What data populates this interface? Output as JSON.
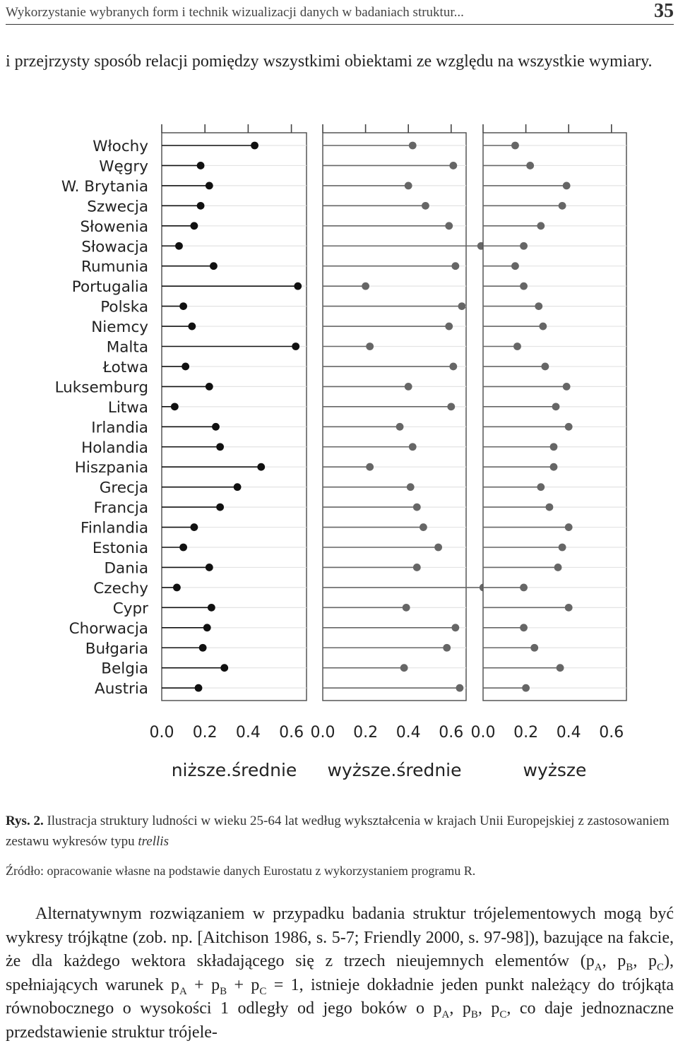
{
  "header": {
    "title": "Wykorzystanie wybranych form i technik wizualizacji danych w badaniach struktur...",
    "page_number": "35"
  },
  "intro_text": "i przejrzysty sposób relacji pomiędzy wszystkimi obiektami ze względu na wszystkie wymiary.",
  "chart_data": {
    "type": "scatter",
    "subtype": "dot-plot trellis (lollipop)",
    "categories": [
      "Włochy",
      "Węgry",
      "W. Brytania",
      "Szwecja",
      "Słowenia",
      "Słowacja",
      "Rumunia",
      "Portugalia",
      "Polska",
      "Niemcy",
      "Malta",
      "Łotwa",
      "Luksemburg",
      "Litwa",
      "Irlandia",
      "Holandia",
      "Hiszpania",
      "Grecja",
      "Francja",
      "Finlandia",
      "Estonia",
      "Dania",
      "Czechy",
      "Cypr",
      "Chorwacja",
      "Bułgaria",
      "Belgia",
      "Austria"
    ],
    "x_ticks": [
      "0.0",
      "0.2",
      "0.4",
      "0.6"
    ],
    "xlim": [
      0,
      0.67
    ],
    "series": [
      {
        "name": "niższe.średnie",
        "color": "#111111",
        "values": [
          0.43,
          0.18,
          0.22,
          0.18,
          0.15,
          0.08,
          0.24,
          0.63,
          0.1,
          0.14,
          0.62,
          0.11,
          0.22,
          0.06,
          0.25,
          0.27,
          0.46,
          0.35,
          0.27,
          0.15,
          0.1,
          0.22,
          0.07,
          0.23,
          0.21,
          0.19,
          0.29,
          0.17
        ]
      },
      {
        "name": "wyższe.średnie",
        "color": "#666666",
        "values": [
          0.42,
          0.61,
          0.4,
          0.48,
          0.59,
          0.74,
          0.62,
          0.2,
          0.65,
          0.59,
          0.22,
          0.61,
          0.4,
          0.6,
          0.36,
          0.42,
          0.22,
          0.41,
          0.44,
          0.47,
          0.54,
          0.44,
          0.75,
          0.39,
          0.62,
          0.58,
          0.38,
          0.64
        ]
      },
      {
        "name": "wyższe",
        "color": "#666666",
        "values": [
          0.15,
          0.22,
          0.39,
          0.37,
          0.27,
          0.19,
          0.15,
          0.19,
          0.26,
          0.28,
          0.16,
          0.29,
          0.39,
          0.34,
          0.4,
          0.33,
          0.33,
          0.27,
          0.31,
          0.4,
          0.37,
          0.35,
          0.19,
          0.4,
          0.19,
          0.24,
          0.36,
          0.2
        ]
      }
    ]
  },
  "caption": {
    "label": "Rys. 2.",
    "text": " Ilustracja struktury ludności w wieku 25-64 lat według wykształcenia w krajach Unii Europejskiej z zastosowaniem zestawu wykresów typu ",
    "term": "trellis"
  },
  "source": "Źródło: opracowanie własne na podstawie danych Eurostatu z wykorzystaniem programu R.",
  "body": {
    "p1": "Alternatywnym rozwiązaniem w przypadku badania struktur trójelementowych mogą być wykresy trójkątne (zob. np. [Aitchison 1986, s. 5-7; Friendly 2000, s. 97-98]), bazujące na fakcie, że dla każdego wektora składającego się z trzech nieujemnych elementów (",
    "p": "p",
    "A": "A",
    "B": "B",
    "C": "C",
    "comma": ", ",
    "p2": "), spełniających warunek ",
    "plus": " + ",
    "eq": " = 1, istnieje dokładnie jeden punkt należący do trójkąta równobocznego o wysokości 1 odległy od jego boków o ",
    "p3": ", co daje jednoznaczne przedstawienie struktur trójele-"
  }
}
